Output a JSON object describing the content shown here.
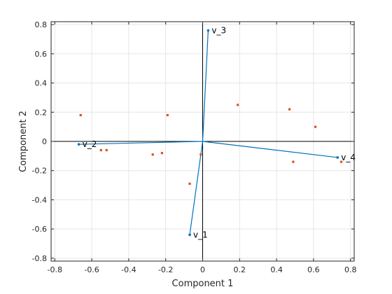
{
  "chart_data": {
    "type": "scatter",
    "subtype": "biplot",
    "xlabel": "Component 1",
    "ylabel": "Component 2",
    "xlim": [
      -0.82,
      0.82
    ],
    "ylim": [
      -0.82,
      0.82
    ],
    "grid": true,
    "xticks": [
      -0.8,
      -0.6,
      -0.4,
      -0.2,
      0,
      0.2,
      0.4,
      0.6,
      0.8
    ],
    "yticks": [
      -0.8,
      -0.6,
      -0.4,
      -0.2,
      0,
      0.2,
      0.4,
      0.6,
      0.8
    ],
    "xtick_labels": [
      "-0.8",
      "-0.6",
      "-0.4",
      "-0.2",
      "0",
      "0.2",
      "0.4",
      "0.6",
      "0.8"
    ],
    "ytick_labels": [
      "-0.8",
      "-0.6",
      "-0.4",
      "-0.2",
      "0",
      "0.2",
      "0.4",
      "0.6",
      "0.8"
    ],
    "vectors": [
      {
        "label": "v_1",
        "x": -0.07,
        "y": -0.64
      },
      {
        "label": "v_2",
        "x": -0.67,
        "y": -0.02
      },
      {
        "label": "v_3",
        "x": 0.03,
        "y": 0.76
      },
      {
        "label": "v_4",
        "x": 0.73,
        "y": -0.11
      }
    ],
    "points": [
      {
        "x": -0.66,
        "y": 0.18
      },
      {
        "x": -0.19,
        "y": 0.18
      },
      {
        "x": 0.19,
        "y": 0.25
      },
      {
        "x": 0.47,
        "y": 0.22
      },
      {
        "x": 0.61,
        "y": 0.1
      },
      {
        "x": -0.55,
        "y": -0.06
      },
      {
        "x": -0.52,
        "y": -0.06
      },
      {
        "x": -0.27,
        "y": -0.09
      },
      {
        "x": -0.22,
        "y": -0.08
      },
      {
        "x": -0.01,
        "y": -0.09
      },
      {
        "x": -0.07,
        "y": -0.29
      },
      {
        "x": 0.49,
        "y": -0.14
      },
      {
        "x": 0.75,
        "y": -0.14
      }
    ],
    "colors": {
      "vector": "#0072BD",
      "point": "#D95319",
      "zero_axes": "#000000",
      "grid": "#E6E6E6",
      "box": "#262626"
    }
  }
}
